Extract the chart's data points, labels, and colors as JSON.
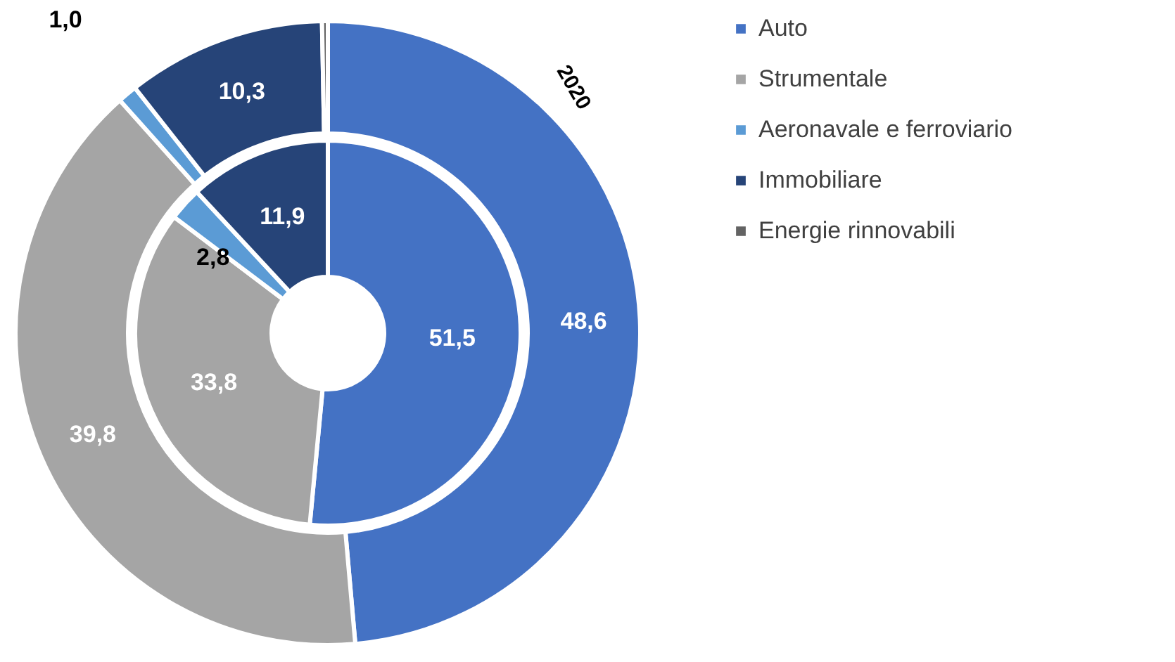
{
  "chart_data": {
    "type": "donut",
    "categories": [
      "Auto",
      "Strumentale",
      "Aeronavale e ferroviario",
      "Immobiliare",
      "Energie rinnovabili"
    ],
    "colors": [
      "#4472c4",
      "#a5a5a5",
      "#5b9bd5",
      "#264478",
      "#636363"
    ],
    "series": [
      {
        "values": [
          48.6,
          39.8,
          1.0,
          10.3,
          0.3
        ],
        "value_labels": [
          "48,6",
          "39,8",
          "1,0",
          "10,3",
          null
        ]
      },
      {
        "values": [
          51.5,
          33.8,
          2.8,
          11.9,
          null
        ],
        "value_labels": [
          "51,5",
          "33,8",
          "2,8",
          "11,9",
          null
        ]
      }
    ],
    "annotations": [
      "2020"
    ],
    "legend": "right"
  }
}
